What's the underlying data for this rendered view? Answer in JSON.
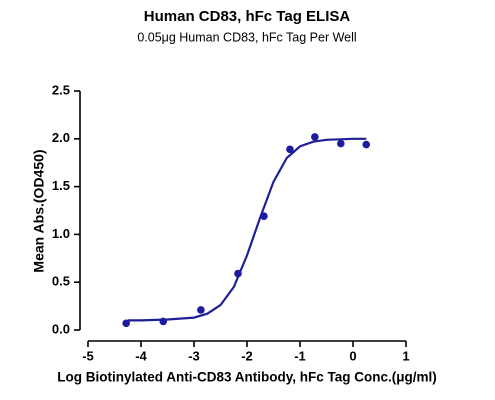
{
  "chart_data": {
    "type": "scatter",
    "title": "Human CD83, hFc Tag ELISA",
    "subtitle": "0.05μg Human CD83, hFc Tag Per Well",
    "x_label": "Log Biotinylated Anti-CD83 Antibody, hFc Tag Conc.(μg/ml)",
    "y_label": "Mean Abs.(OD450)",
    "points": {
      "color": "#1c1ca0",
      "x": [
        -4.28,
        -3.58,
        -2.87,
        -2.17,
        -1.68,
        -1.19,
        -0.72,
        -0.23,
        0.25
      ],
      "values": [
        0.07,
        0.09,
        0.21,
        0.59,
        1.19,
        1.89,
        2.02,
        1.95,
        1.94
      ]
    },
    "fit": {
      "color": "#1f1f96",
      "x": [
        -4.25,
        -4,
        -3.5,
        -3,
        -2.75,
        -2.5,
        -2.25,
        -2,
        -1.75,
        -1.5,
        -1.25,
        -1,
        -0.75,
        -0.5,
        0,
        0.25
      ],
      "values": [
        0.1,
        0.1,
        0.11,
        0.13,
        0.17,
        0.26,
        0.45,
        0.78,
        1.18,
        1.55,
        1.8,
        1.92,
        1.97,
        1.99,
        2.0,
        2.0
      ]
    },
    "xlim": [
      -5,
      1
    ],
    "xticks": [
      -5,
      -4,
      -3,
      -2,
      -1,
      0,
      1
    ],
    "ylim": [
      0,
      2.5
    ],
    "yticks": [
      {
        "value": 0,
        "label": "0.0"
      },
      0.5,
      {
        "value": 1,
        "label": "1.0"
      },
      1.5,
      {
        "value": 2,
        "label": "2.0"
      },
      2.5
    ]
  }
}
